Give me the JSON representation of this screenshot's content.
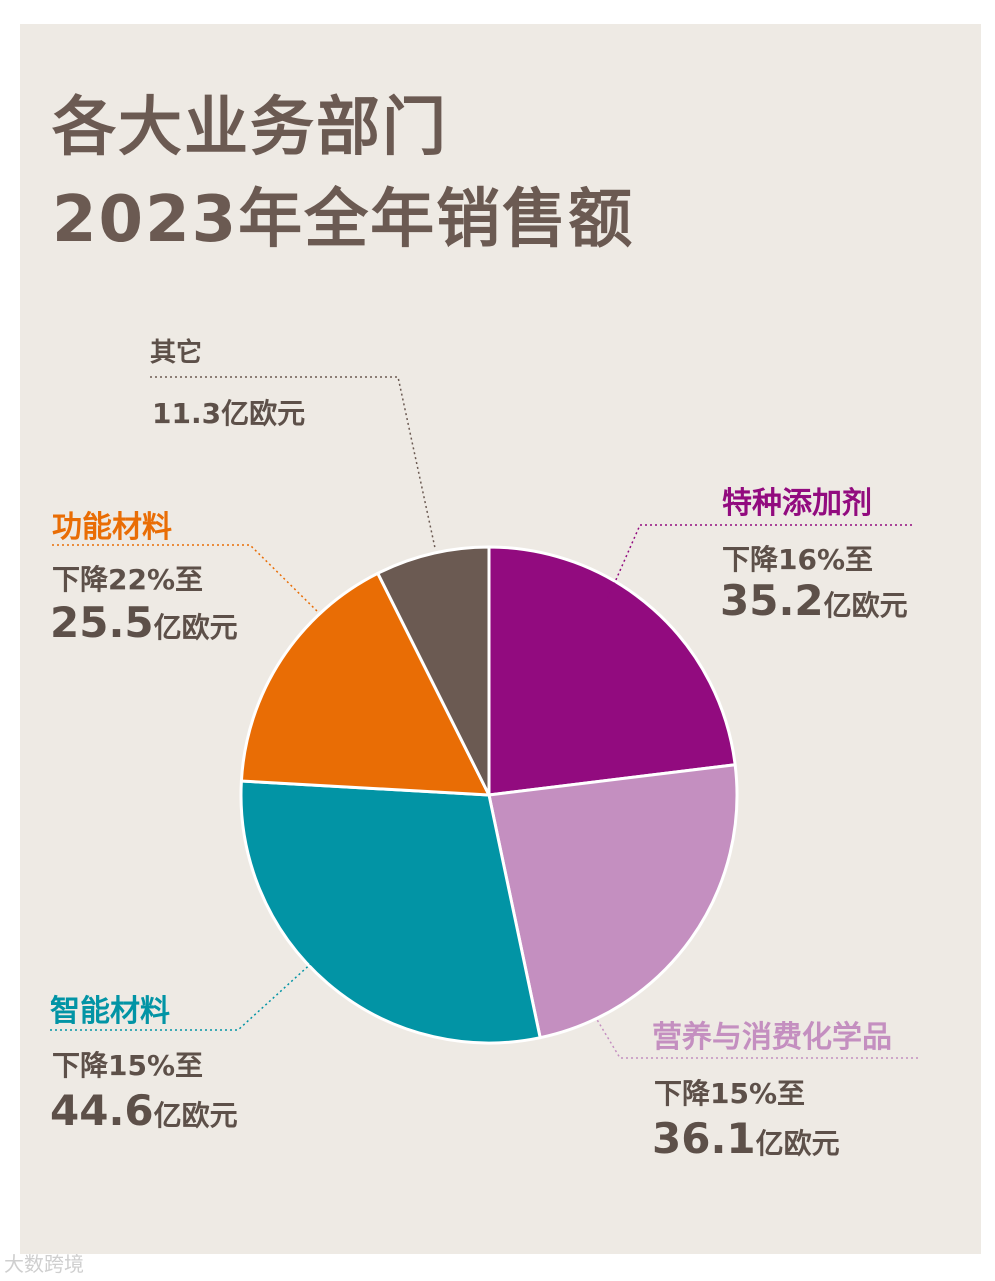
{
  "title": {
    "line1": "各大业务部门",
    "line2": "2023年全年销售额"
  },
  "chart_data": {
    "type": "pie",
    "title": "各大业务部门 2023年全年销售额",
    "unit": "亿欧元",
    "slices": [
      {
        "name": "特种添加剂",
        "value": 35.2,
        "color": "#920b7f",
        "desc": "下降16%至",
        "value_text": "35.2",
        "unit_text": "亿欧元"
      },
      {
        "name": "营养与消费化学品",
        "value": 36.1,
        "color": "#c48fc0",
        "desc": "下降15%至",
        "value_text": "36.1",
        "unit_text": "亿欧元"
      },
      {
        "name": "智能材料",
        "value": 44.6,
        "color": "#0294a5",
        "desc": "下降15%至",
        "value_text": "44.6",
        "unit_text": "亿欧元"
      },
      {
        "name": "功能材料",
        "value": 25.5,
        "color": "#e96d05",
        "desc": "下降22%至",
        "value_text": "25.5",
        "unit_text": "亿欧元"
      },
      {
        "name": "其它",
        "value": 11.3,
        "color": "#6b5a52",
        "desc": "",
        "value_text": "11.3亿欧元",
        "unit_text": ""
      }
    ]
  },
  "watermark": "大数跨境"
}
